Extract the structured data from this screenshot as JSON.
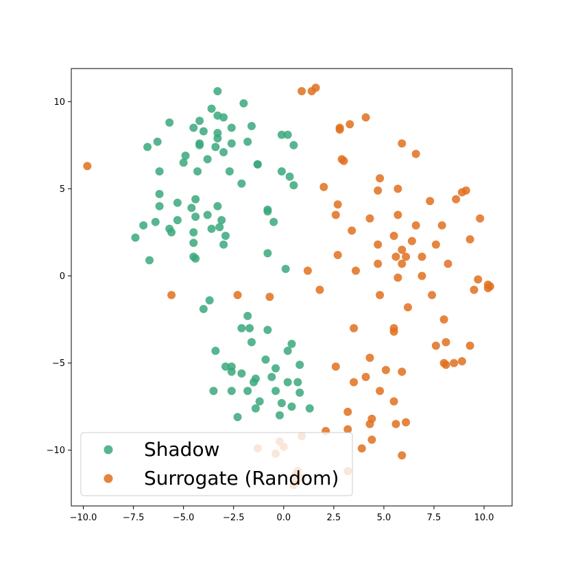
{
  "chart_data": {
    "type": "scatter",
    "title": "",
    "xlabel": "",
    "ylabel": "",
    "xlim": [
      -10.6,
      11.4
    ],
    "ylim": [
      -13.2,
      11.9
    ],
    "grid": false,
    "legend_position": "bottom-left",
    "x_ticks": [
      -10.0,
      -7.5,
      -5.0,
      -2.5,
      0.0,
      2.5,
      5.0,
      7.5,
      10.0
    ],
    "x_tick_labels": [
      "−10.0",
      "−7.5",
      "−5.0",
      "−2.5",
      "0.0",
      "2.5",
      "5.0",
      "7.5",
      "10.0"
    ],
    "y_ticks": [
      -10,
      -5,
      0,
      5,
      10
    ],
    "y_tick_labels": [
      "−10",
      "−5",
      "0",
      "5",
      "10"
    ],
    "series": [
      {
        "name": "Shadow",
        "color": "#3aa87c",
        "points": [
          [
            -3.3,
            10.6
          ],
          [
            -2.0,
            9.9
          ],
          [
            -3.6,
            9.6
          ],
          [
            -3.3,
            9.2
          ],
          [
            -3.0,
            9.1
          ],
          [
            -5.7,
            8.8
          ],
          [
            -4.2,
            8.9
          ],
          [
            -4.5,
            8.5
          ],
          [
            -4.0,
            8.3
          ],
          [
            -2.6,
            8.5
          ],
          [
            -1.6,
            8.6
          ],
          [
            -3.3,
            8.2
          ],
          [
            -0.1,
            8.1
          ],
          [
            0.2,
            8.1
          ],
          [
            -3.3,
            7.9
          ],
          [
            -6.8,
            7.4
          ],
          [
            -6.3,
            7.7
          ],
          [
            -4.2,
            7.6
          ],
          [
            -4.2,
            7.5
          ],
          [
            -3.4,
            7.4
          ],
          [
            -2.6,
            7.6
          ],
          [
            -1.8,
            7.7
          ],
          [
            0.5,
            7.5
          ],
          [
            -3.0,
            7.1
          ],
          [
            -4.9,
            6.9
          ],
          [
            -3.8,
            6.7
          ],
          [
            -5.0,
            6.5
          ],
          [
            -1.3,
            6.4
          ],
          [
            -1.3,
            6.4
          ],
          [
            -6.2,
            6.0
          ],
          [
            -4.3,
            6.0
          ],
          [
            -2.7,
            6.0
          ],
          [
            -0.1,
            6.0
          ],
          [
            0.3,
            5.7
          ],
          [
            -2.1,
            5.3
          ],
          [
            0.5,
            5.2
          ],
          [
            -6.2,
            4.7
          ],
          [
            -4.4,
            4.4
          ],
          [
            -5.3,
            4.2
          ],
          [
            -4.6,
            3.9
          ],
          [
            -6.2,
            4.0
          ],
          [
            -3.3,
            4.0
          ],
          [
            -0.8,
            3.8
          ],
          [
            -0.8,
            3.7
          ],
          [
            -3.8,
            3.5
          ],
          [
            -4.4,
            3.4
          ],
          [
            -5.3,
            3.2
          ],
          [
            -3.1,
            3.2
          ],
          [
            -6.4,
            3.1
          ],
          [
            -0.5,
            3.1
          ],
          [
            -7.0,
            2.9
          ],
          [
            -3.2,
            2.8
          ],
          [
            -3.6,
            2.7
          ],
          [
            -5.7,
            2.7
          ],
          [
            -4.5,
            2.5
          ],
          [
            -5.6,
            2.5
          ],
          [
            -2.9,
            2.3
          ],
          [
            -7.4,
            2.2
          ],
          [
            -4.5,
            1.9
          ],
          [
            -3.0,
            1.8
          ],
          [
            -0.8,
            1.3
          ],
          [
            -4.5,
            1.1
          ],
          [
            -4.4,
            1.0
          ],
          [
            -6.7,
            0.9
          ],
          [
            0.1,
            0.4
          ],
          [
            -3.7,
            -1.4
          ],
          [
            -4.0,
            -1.9
          ],
          [
            -1.8,
            -2.3
          ],
          [
            -2.1,
            -3.0
          ],
          [
            -1.7,
            -3.0
          ],
          [
            -0.8,
            -3.1
          ],
          [
            -1.6,
            -3.8
          ],
          [
            0.4,
            -3.9
          ],
          [
            -3.4,
            -4.3
          ],
          [
            0.2,
            -4.3
          ],
          [
            -0.9,
            -4.8
          ],
          [
            -2.9,
            -5.2
          ],
          [
            -2.6,
            -5.2
          ],
          [
            -0.4,
            -5.3
          ],
          [
            0.8,
            -5.1
          ],
          [
            -2.6,
            -5.5
          ],
          [
            -2.1,
            -5.6
          ],
          [
            -0.6,
            -5.8
          ],
          [
            -1.4,
            -5.9
          ],
          [
            -1.5,
            -6.1
          ],
          [
            0.2,
            -6.1
          ],
          [
            0.7,
            -6.1
          ],
          [
            -1.8,
            -6.6
          ],
          [
            -3.5,
            -6.6
          ],
          [
            -2.6,
            -6.6
          ],
          [
            -0.4,
            -6.6
          ],
          [
            0.8,
            -6.7
          ],
          [
            -1.2,
            -7.2
          ],
          [
            -0.1,
            -7.3
          ],
          [
            0.4,
            -7.5
          ],
          [
            -1.4,
            -7.6
          ],
          [
            1.3,
            -7.6
          ],
          [
            -0.2,
            -8.0
          ],
          [
            -2.3,
            -8.1
          ]
        ]
      },
      {
        "name": "Surrogate (Random)",
        "color": "#e0701f",
        "points": [
          [
            -9.8,
            6.3
          ],
          [
            0.9,
            10.6
          ],
          [
            1.4,
            10.6
          ],
          [
            1.6,
            10.8
          ],
          [
            4.1,
            9.1
          ],
          [
            3.3,
            8.7
          ],
          [
            2.8,
            8.4
          ],
          [
            2.8,
            8.5
          ],
          [
            5.9,
            7.6
          ],
          [
            6.6,
            7.0
          ],
          [
            2.9,
            6.7
          ],
          [
            3.0,
            6.6
          ],
          [
            4.8,
            5.6
          ],
          [
            2.0,
            5.1
          ],
          [
            5.7,
            5.0
          ],
          [
            4.7,
            4.9
          ],
          [
            9.1,
            4.9
          ],
          [
            8.9,
            4.8
          ],
          [
            7.3,
            4.3
          ],
          [
            8.6,
            4.4
          ],
          [
            2.7,
            4.1
          ],
          [
            2.6,
            3.5
          ],
          [
            4.3,
            3.3
          ],
          [
            5.7,
            3.5
          ],
          [
            9.8,
            3.3
          ],
          [
            6.6,
            2.9
          ],
          [
            7.9,
            2.9
          ],
          [
            3.4,
            2.6
          ],
          [
            5.5,
            2.3
          ],
          [
            6.4,
            2.0
          ],
          [
            9.3,
            2.1
          ],
          [
            4.7,
            1.8
          ],
          [
            7.6,
            1.8
          ],
          [
            5.9,
            1.5
          ],
          [
            5.6,
            1.1
          ],
          [
            6.1,
            1.1
          ],
          [
            6.9,
            1.1
          ],
          [
            2.7,
            1.2
          ],
          [
            4.7,
            0.7
          ],
          [
            5.9,
            0.7
          ],
          [
            8.2,
            0.7
          ],
          [
            1.2,
            0.3
          ],
          [
            3.6,
            0.3
          ],
          [
            6.9,
            0.0
          ],
          [
            5.7,
            -0.1
          ],
          [
            9.7,
            -0.2
          ],
          [
            10.2,
            -0.5
          ],
          [
            10.3,
            -0.6
          ],
          [
            10.2,
            -0.7
          ],
          [
            9.5,
            -0.8
          ],
          [
            1.8,
            -0.8
          ],
          [
            7.4,
            -1.1
          ],
          [
            -5.6,
            -1.1
          ],
          [
            -2.3,
            -1.1
          ],
          [
            -0.7,
            -1.2
          ],
          [
            4.8,
            -1.1
          ],
          [
            6.2,
            -1.8
          ],
          [
            8.0,
            -2.5
          ],
          [
            3.5,
            -3.0
          ],
          [
            5.5,
            -3.0
          ],
          [
            5.5,
            -3.2
          ],
          [
            8.1,
            -3.8
          ],
          [
            7.6,
            -4.0
          ],
          [
            9.3,
            -4.0
          ],
          [
            4.3,
            -4.7
          ],
          [
            8.5,
            -5.0
          ],
          [
            8.9,
            -4.9
          ],
          [
            8.0,
            -5.0
          ],
          [
            8.1,
            -5.1
          ],
          [
            2.6,
            -5.2
          ],
          [
            5.1,
            -5.4
          ],
          [
            5.9,
            -5.5
          ],
          [
            4.1,
            -5.8
          ],
          [
            3.5,
            -6.1
          ],
          [
            4.8,
            -6.6
          ],
          [
            5.5,
            -7.2
          ],
          [
            3.2,
            -7.8
          ],
          [
            4.4,
            -8.2
          ],
          [
            4.3,
            -8.5
          ],
          [
            5.6,
            -8.5
          ],
          [
            6.1,
            -8.4
          ],
          [
            3.2,
            -8.8
          ],
          [
            2.1,
            -8.9
          ],
          [
            0.9,
            -9.2
          ],
          [
            4.4,
            -9.4
          ],
          [
            -0.2,
            -9.5
          ],
          [
            0.0,
            -9.8
          ],
          [
            3.9,
            -9.9
          ],
          [
            -1.3,
            -9.9
          ],
          [
            -0.4,
            -10.2
          ],
          [
            5.9,
            -10.3
          ],
          [
            0.6,
            -11.4
          ],
          [
            0.7,
            -11.2
          ],
          [
            3.2,
            -11.2
          ],
          [
            0.6,
            -11.8
          ],
          [
            0.5,
            -12.0
          ],
          [
            0.9,
            -11.6
          ]
        ]
      }
    ]
  }
}
